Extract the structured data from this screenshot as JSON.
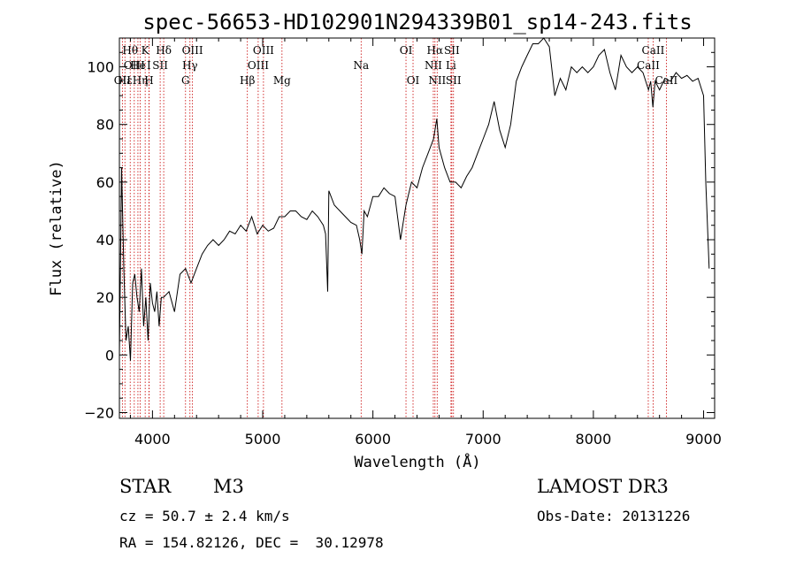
{
  "colors": {
    "spectrum": "#000000",
    "line_markers": "#c80000"
  },
  "chart_data": {
    "type": "line",
    "title": "spec-56653-HD102901N294339B01_sp14-243.fits",
    "xlabel": "Wavelength (Å)",
    "ylabel": "Flux (relative)",
    "xlim": [
      3700,
      9100
    ],
    "ylim": [
      -22,
      110
    ],
    "xticks": [
      4000,
      5000,
      6000,
      7000,
      8000,
      9000
    ],
    "yticks": [
      -20,
      0,
      20,
      40,
      60,
      80,
      100
    ],
    "grid": false,
    "series": [
      {
        "x": [
          3700,
          3720,
          3740,
          3760,
          3780,
          3800,
          3820,
          3840,
          3860,
          3880,
          3900,
          3920,
          3940,
          3960,
          3980,
          4000,
          4020,
          4040,
          4060,
          4080,
          4100,
          4150,
          4200,
          4250,
          4300,
          4350,
          4400,
          4450,
          4500,
          4550,
          4600,
          4650,
          4700,
          4750,
          4800,
          4850,
          4900,
          4950,
          5000,
          5050,
          5100,
          5150,
          5200,
          5250,
          5300,
          5350,
          5400,
          5450,
          5500,
          5550,
          5570,
          5590,
          5600,
          5650,
          5700,
          5750,
          5800,
          5850,
          5880,
          5900,
          5920,
          5950,
          6000,
          6050,
          6100,
          6150,
          6200,
          6250,
          6300,
          6350,
          6400,
          6450,
          6500,
          6550,
          6580,
          6600,
          6650,
          6700,
          6750,
          6800,
          6850,
          6900,
          6950,
          7000,
          7050,
          7100,
          7150,
          7200,
          7250,
          7300,
          7350,
          7400,
          7450,
          7500,
          7550,
          7600,
          7650,
          7700,
          7750,
          7800,
          7850,
          7900,
          7950,
          8000,
          8050,
          8100,
          8150,
          8200,
          8250,
          8300,
          8350,
          8400,
          8450,
          8500,
          8520,
          8540,
          8560,
          8600,
          8650,
          8700,
          8750,
          8800,
          8850,
          8900,
          8950,
          9000,
          9020,
          9050
        ],
        "y": [
          0,
          65,
          30,
          5,
          10,
          -2,
          25,
          28,
          20,
          15,
          30,
          10,
          20,
          5,
          25,
          18,
          15,
          22,
          10,
          20,
          20,
          22,
          15,
          28,
          30,
          25,
          30,
          35,
          38,
          40,
          38,
          40,
          43,
          42,
          45,
          43,
          48,
          42,
          45,
          43,
          44,
          48,
          48,
          50,
          50,
          48,
          47,
          50,
          48,
          45,
          42,
          22,
          57,
          52,
          50,
          48,
          46,
          45,
          40,
          35,
          50,
          48,
          55,
          55,
          58,
          56,
          55,
          40,
          52,
          60,
          58,
          65,
          70,
          75,
          82,
          72,
          65,
          60,
          60,
          58,
          62,
          65,
          70,
          75,
          80,
          88,
          78,
          72,
          80,
          95,
          100,
          104,
          108,
          108,
          110,
          107,
          90,
          96,
          92,
          100,
          98,
          100,
          98,
          100,
          104,
          106,
          98,
          92,
          104,
          100,
          98,
          100,
          98,
          92,
          95,
          86,
          95,
          92,
          96,
          95,
          98,
          96,
          97,
          95,
          96,
          90,
          60,
          30
        ]
      }
    ],
    "lines": [
      {
        "w": 3727,
        "row": 2,
        "text": "OII"
      },
      {
        "w": 3750,
        "row": 2,
        "text": "Hε"
      },
      {
        "w": 3798,
        "row": 0,
        "text": "Hθ"
      },
      {
        "w": 3835,
        "row": 1,
        "text": "OIII"
      },
      {
        "w": 3868,
        "row": 1,
        "text": "He"
      },
      {
        "w": 3889,
        "row": 2,
        "text": "Hη"
      },
      {
        "w": 3934,
        "row": 0,
        "text": "K"
      },
      {
        "w": 3969,
        "row": 2,
        "text": "H"
      },
      {
        "w": 3968,
        "row": 1,
        "text": "I"
      },
      {
        "w": 4070,
        "row": 1,
        "text": "SII"
      },
      {
        "w": 4102,
        "row": 0,
        "text": "Hδ"
      },
      {
        "w": 4300,
        "row": 2,
        "text": "G"
      },
      {
        "w": 4340,
        "row": 1,
        "text": "Hγ"
      },
      {
        "w": 4363,
        "row": 0,
        "text": "OIII"
      },
      {
        "w": 4861,
        "row": 2,
        "text": "Hβ"
      },
      {
        "w": 4959,
        "row": 1,
        "text": "OIII"
      },
      {
        "w": 5007,
        "row": 0,
        "text": "OIII"
      },
      {
        "w": 5175,
        "row": 2,
        "text": "Mg"
      },
      {
        "w": 5893,
        "row": 1,
        "text": "Na"
      },
      {
        "w": 6300,
        "row": 0,
        "text": "OI"
      },
      {
        "w": 6364,
        "row": 2,
        "text": "OI"
      },
      {
        "w": 6548,
        "row": 1,
        "text": "NII"
      },
      {
        "w": 6563,
        "row": 0,
        "text": "Hα"
      },
      {
        "w": 6583,
        "row": 2,
        "text": "NII"
      },
      {
        "w": 6708,
        "row": 1,
        "text": "Li"
      },
      {
        "w": 6716,
        "row": 0,
        "text": "SII"
      },
      {
        "w": 6731,
        "row": 2,
        "text": "SII"
      },
      {
        "w": 8498,
        "row": 1,
        "text": "CaII"
      },
      {
        "w": 8542,
        "row": 0,
        "text": "CaII"
      },
      {
        "w": 8662,
        "row": 2,
        "text": "CaII"
      }
    ]
  },
  "footer": {
    "object_class": "STAR",
    "subclass": "M3",
    "survey": "LAMOST DR3",
    "redshift": "cz = 50.7 ± 2.4 km/s",
    "obs_date": "Obs-Date: 20131226",
    "coords": "RA = 154.82126, DEC =  30.12978"
  }
}
